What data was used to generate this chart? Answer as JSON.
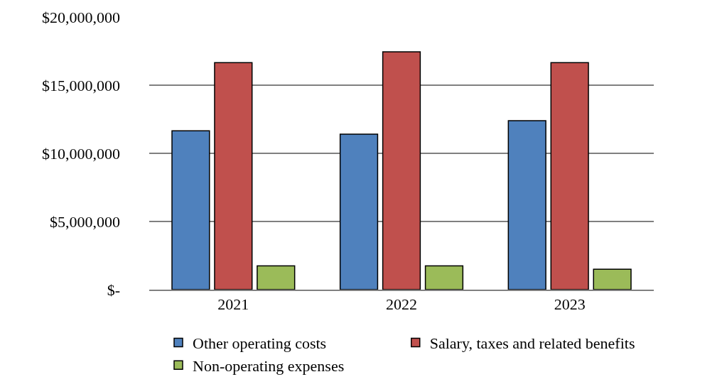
{
  "chart_data": {
    "type": "bar",
    "categories": [
      "2021",
      "2022",
      "2023"
    ],
    "series": [
      {
        "name": "Other operating costs",
        "color": "#4f81bd",
        "values": [
          11650000,
          11400000,
          12400000
        ]
      },
      {
        "name": "Salary, taxes and related benefits",
        "color": "#c0504d",
        "values": [
          16650000,
          17450000,
          16650000
        ]
      },
      {
        "name": "Non-operating expenses",
        "color": "#9bbb59",
        "values": [
          1750000,
          1750000,
          1500000
        ]
      }
    ],
    "ylim": [
      0,
      20000000
    ],
    "yticks": [
      {
        "value": 0,
        "label": "$-"
      },
      {
        "value": 5000000,
        "label": "$5,000,000"
      },
      {
        "value": 10000000,
        "label": "$10,000,000"
      },
      {
        "value": 15000000,
        "label": "$15,000,000"
      },
      {
        "value": 20000000,
        "label": "$20,000,000"
      }
    ],
    "grid": "y",
    "legend": "bottom"
  }
}
